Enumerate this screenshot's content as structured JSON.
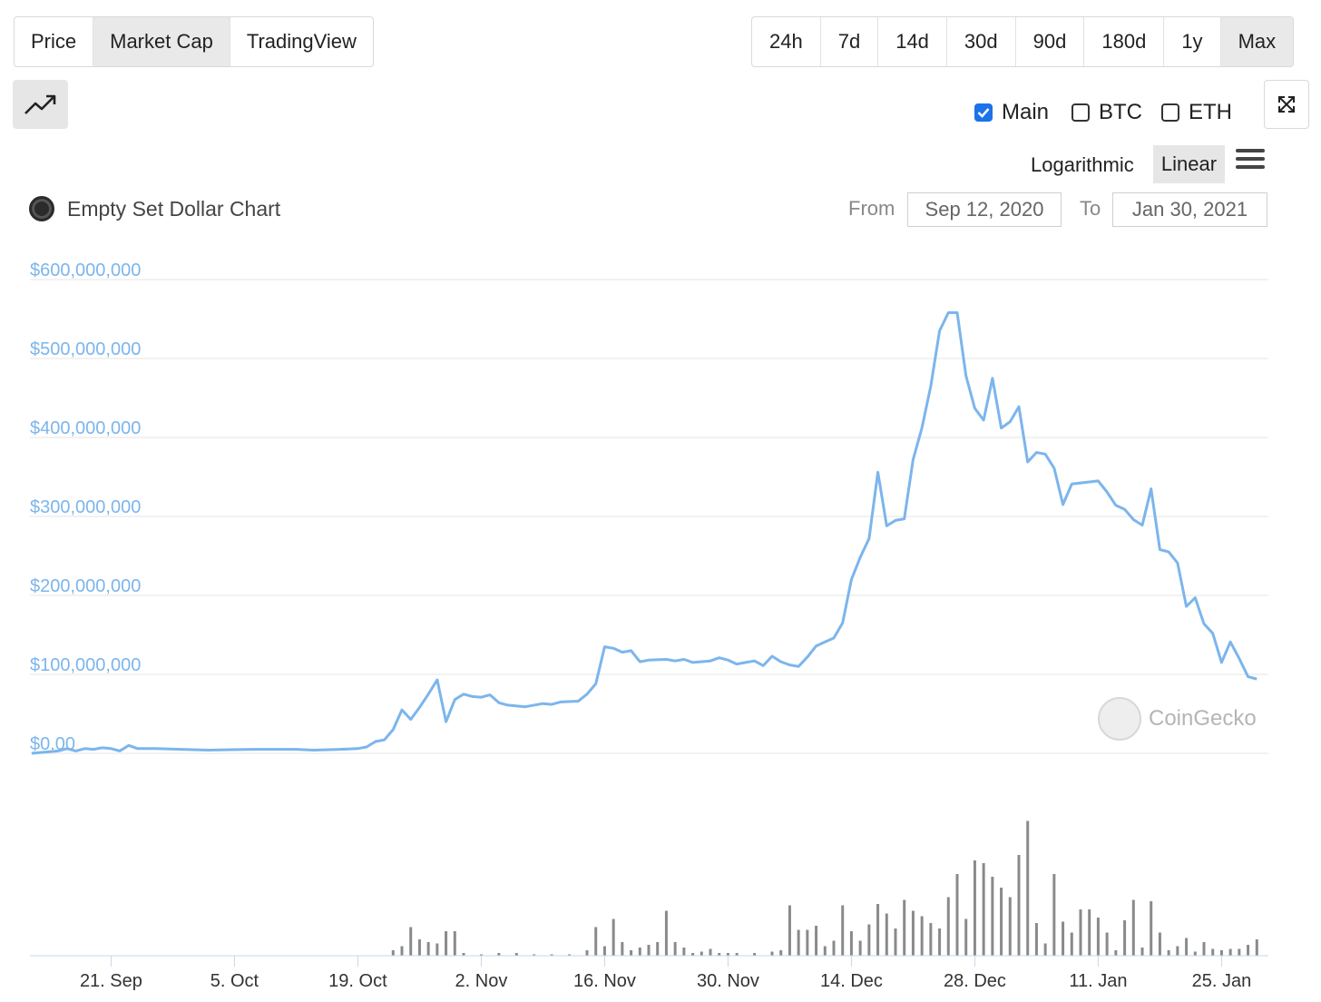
{
  "view_tabs": [
    {
      "label": "Price",
      "active": false
    },
    {
      "label": "Market Cap",
      "active": true
    },
    {
      "label": "TradingView",
      "active": false
    }
  ],
  "range_tabs": [
    {
      "label": "24h",
      "active": false
    },
    {
      "label": "7d",
      "active": false
    },
    {
      "label": "14d",
      "active": false
    },
    {
      "label": "30d",
      "active": false
    },
    {
      "label": "90d",
      "active": false
    },
    {
      "label": "180d",
      "active": false
    },
    {
      "label": "1y",
      "active": false
    },
    {
      "label": "Max",
      "active": true
    }
  ],
  "chart_type_icon": "trending-up-icon",
  "fullscreen_icon": "expand-icon",
  "compare": [
    {
      "label": "Main",
      "checked": true
    },
    {
      "label": "BTC",
      "checked": false
    },
    {
      "label": "ETH",
      "checked": false
    }
  ],
  "scale": {
    "log_label": "Logarithmic",
    "linear_label": "Linear",
    "active": "linear"
  },
  "menu_icon": "hamburger-menu-icon",
  "legend": {
    "title": "Empty Set Dollar Chart"
  },
  "date_range": {
    "from_label": "From",
    "from_value": "Sep 12, 2020",
    "to_label": "To",
    "to_value": "Jan 30, 2021"
  },
  "watermark": {
    "text": "CoinGecko"
  },
  "colors": {
    "line": "#7cb5ec",
    "volume": "#8a8a8a",
    "axis_label": "#7cb5ec",
    "grid": "#e6e6e6"
  },
  "chart_data": {
    "type": "line",
    "title": "Empty Set Dollar Chart",
    "x_start": "2020-09-12",
    "x_end": "2021-01-30",
    "xlabel": "",
    "ylabel": "",
    "ylim": [
      0,
      600000000
    ],
    "y_ticks": [
      "$0.00",
      "$100,000,000",
      "$200,000,000",
      "$300,000,000",
      "$400,000,000",
      "$500,000,000",
      "$600,000,000"
    ],
    "x_ticks": [
      {
        "date": "2020-09-21",
        "label": "21. Sep"
      },
      {
        "date": "2020-10-05",
        "label": "5. Oct"
      },
      {
        "date": "2020-10-19",
        "label": "19. Oct"
      },
      {
        "date": "2020-11-02",
        "label": "2. Nov"
      },
      {
        "date": "2020-11-16",
        "label": "16. Nov"
      },
      {
        "date": "2020-11-30",
        "label": "30. Nov"
      },
      {
        "date": "2020-12-14",
        "label": "14. Dec"
      },
      {
        "date": "2020-12-28",
        "label": "28. Dec"
      },
      {
        "date": "2021-01-11",
        "label": "11. Jan"
      },
      {
        "date": "2021-01-25",
        "label": "25. Jan"
      }
    ],
    "grid": true,
    "series": [
      {
        "values": [
          [
            0,
            0
          ],
          [
            3,
            3000000
          ],
          [
            4,
            6000000
          ],
          [
            5,
            3000000
          ],
          [
            6,
            6000000
          ],
          [
            7,
            5000000
          ],
          [
            8,
            7000000
          ],
          [
            9,
            6000000
          ],
          [
            10,
            3000000
          ],
          [
            11,
            10000000
          ],
          [
            12,
            6000000
          ],
          [
            14,
            6000000
          ],
          [
            20,
            4000000
          ],
          [
            25,
            5000000
          ],
          [
            30,
            5000000
          ],
          [
            32,
            4000000
          ],
          [
            35,
            5000000
          ],
          [
            37,
            6000000
          ],
          [
            38,
            8000000
          ],
          [
            39,
            15000000
          ],
          [
            40,
            17000000
          ],
          [
            41,
            30000000
          ],
          [
            42,
            55000000
          ],
          [
            43,
            43000000
          ],
          [
            44,
            58000000
          ],
          [
            45,
            75000000
          ],
          [
            46,
            93000000
          ],
          [
            47,
            40000000
          ],
          [
            48,
            68000000
          ],
          [
            49,
            75000000
          ],
          [
            50,
            72000000
          ],
          [
            51,
            71000000
          ],
          [
            52,
            74000000
          ],
          [
            53,
            64000000
          ],
          [
            54,
            61000000
          ],
          [
            56,
            59000000
          ],
          [
            58,
            63000000
          ],
          [
            59,
            62000000
          ],
          [
            60,
            65000000
          ],
          [
            62,
            66000000
          ],
          [
            63,
            75000000
          ],
          [
            64,
            88000000
          ],
          [
            65,
            135000000
          ],
          [
            66,
            133000000
          ],
          [
            67,
            128000000
          ],
          [
            68,
            130000000
          ],
          [
            69,
            116000000
          ],
          [
            70,
            118000000
          ],
          [
            72,
            119000000
          ],
          [
            73,
            117000000
          ],
          [
            74,
            119000000
          ],
          [
            75,
            115000000
          ],
          [
            77,
            117000000
          ],
          [
            78,
            121000000
          ],
          [
            79,
            118000000
          ],
          [
            80,
            113000000
          ],
          [
            81,
            115000000
          ],
          [
            82,
            117000000
          ],
          [
            83,
            111000000
          ],
          [
            84,
            123000000
          ],
          [
            85,
            116000000
          ],
          [
            86,
            112000000
          ],
          [
            87,
            110000000
          ],
          [
            88,
            122000000
          ],
          [
            89,
            136000000
          ],
          [
            90,
            141000000
          ],
          [
            91,
            146000000
          ],
          [
            92,
            165000000
          ],
          [
            93,
            220000000
          ],
          [
            94,
            248000000
          ],
          [
            95,
            272000000
          ],
          [
            96,
            356000000
          ],
          [
            97,
            288000000
          ],
          [
            98,
            295000000
          ],
          [
            99,
            297000000
          ],
          [
            100,
            372000000
          ],
          [
            101,
            412000000
          ],
          [
            102,
            465000000
          ],
          [
            103,
            535000000
          ],
          [
            104,
            558000000
          ],
          [
            105,
            558000000
          ],
          [
            106,
            478000000
          ],
          [
            107,
            437000000
          ],
          [
            108,
            422000000
          ],
          [
            109,
            475000000
          ],
          [
            110,
            412000000
          ],
          [
            111,
            420000000
          ],
          [
            112,
            439000000
          ],
          [
            113,
            369000000
          ],
          [
            114,
            381000000
          ],
          [
            115,
            379000000
          ],
          [
            116,
            361000000
          ],
          [
            117,
            315000000
          ],
          [
            118,
            341000000
          ],
          [
            121,
            345000000
          ],
          [
            122,
            331000000
          ],
          [
            123,
            314000000
          ],
          [
            124,
            309000000
          ],
          [
            125,
            296000000
          ],
          [
            126,
            289000000
          ],
          [
            127,
            335000000
          ],
          [
            128,
            258000000
          ],
          [
            129,
            255000000
          ],
          [
            130,
            241000000
          ],
          [
            131,
            186000000
          ],
          [
            132,
            197000000
          ],
          [
            133,
            164000000
          ],
          [
            134,
            152000000
          ],
          [
            135,
            115000000
          ],
          [
            136,
            141000000
          ],
          [
            137,
            120000000
          ],
          [
            138,
            97000000
          ],
          [
            139,
            94000000
          ]
        ]
      }
    ],
    "volume": [
      [
        41,
        0.04
      ],
      [
        42,
        0.07
      ],
      [
        43,
        0.21
      ],
      [
        44,
        0.12
      ],
      [
        45,
        0.1
      ],
      [
        46,
        0.09
      ],
      [
        47,
        0.18
      ],
      [
        48,
        0.18
      ],
      [
        49,
        0.02
      ],
      [
        51,
        0.01
      ],
      [
        53,
        0.02
      ],
      [
        55,
        0.02
      ],
      [
        57,
        0.01
      ],
      [
        59,
        0.01
      ],
      [
        61,
        0.01
      ],
      [
        63,
        0.04
      ],
      [
        64,
        0.21
      ],
      [
        65,
        0.07
      ],
      [
        66,
        0.27
      ],
      [
        67,
        0.1
      ],
      [
        68,
        0.04
      ],
      [
        69,
        0.06
      ],
      [
        70,
        0.08
      ],
      [
        71,
        0.1
      ],
      [
        72,
        0.33
      ],
      [
        73,
        0.1
      ],
      [
        74,
        0.06
      ],
      [
        75,
        0.02
      ],
      [
        76,
        0.03
      ],
      [
        77,
        0.05
      ],
      [
        78,
        0.02
      ],
      [
        79,
        0.02
      ],
      [
        80,
        0.02
      ],
      [
        82,
        0.02
      ],
      [
        84,
        0.03
      ],
      [
        85,
        0.04
      ],
      [
        86,
        0.37
      ],
      [
        87,
        0.19
      ],
      [
        88,
        0.19
      ],
      [
        89,
        0.22
      ],
      [
        90,
        0.07
      ],
      [
        91,
        0.11
      ],
      [
        92,
        0.37
      ],
      [
        93,
        0.18
      ],
      [
        94,
        0.11
      ],
      [
        95,
        0.23
      ],
      [
        96,
        0.38
      ],
      [
        97,
        0.31
      ],
      [
        98,
        0.2
      ],
      [
        99,
        0.41
      ],
      [
        100,
        0.33
      ],
      [
        101,
        0.29
      ],
      [
        102,
        0.24
      ],
      [
        103,
        0.2
      ],
      [
        104,
        0.43
      ],
      [
        105,
        0.6
      ],
      [
        106,
        0.27
      ],
      [
        107,
        0.7
      ],
      [
        108,
        0.68
      ],
      [
        109,
        0.58
      ],
      [
        110,
        0.5
      ],
      [
        111,
        0.43
      ],
      [
        112,
        0.74
      ],
      [
        113,
        0.99
      ],
      [
        114,
        0.24
      ],
      [
        115,
        0.09
      ],
      [
        116,
        0.6
      ],
      [
        117,
        0.25
      ],
      [
        118,
        0.17
      ],
      [
        119,
        0.34
      ],
      [
        120,
        0.34
      ],
      [
        121,
        0.28
      ],
      [
        122,
        0.17
      ],
      [
        123,
        0.04
      ],
      [
        124,
        0.26
      ],
      [
        125,
        0.41
      ],
      [
        126,
        0.06
      ],
      [
        127,
        0.4
      ],
      [
        128,
        0.17
      ],
      [
        129,
        0.04
      ],
      [
        130,
        0.07
      ],
      [
        131,
        0.13
      ],
      [
        132,
        0.03
      ],
      [
        133,
        0.1
      ],
      [
        134,
        0.05
      ],
      [
        135,
        0.04
      ],
      [
        136,
        0.05
      ],
      [
        137,
        0.05
      ],
      [
        138,
        0.08
      ],
      [
        139,
        0.12
      ]
    ]
  }
}
